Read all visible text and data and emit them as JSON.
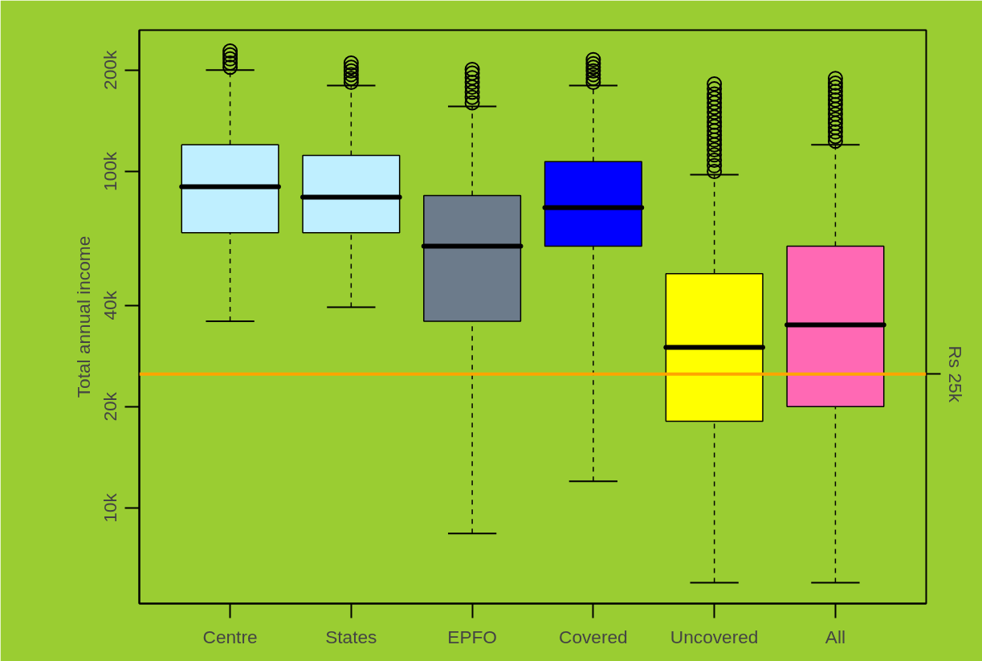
{
  "chart_data": {
    "type": "box",
    "ylabel": "Total annual income",
    "categories": [
      "Centre",
      "States",
      "EPFO",
      "Covered",
      "Uncovered",
      "All"
    ],
    "colors": [
      "#bfefff",
      "#bfefff",
      "#6c7b8b",
      "#0000ff",
      "#ffff00",
      "#ff69b4"
    ],
    "boxes": [
      {
        "low": 35900,
        "q1": 65800,
        "median": 90100,
        "q3": 120000,
        "high": 200000,
        "outliers": [
          204000,
          210000,
          216000,
          222000,
          228000
        ]
      },
      {
        "low": 39500,
        "q1": 65800,
        "median": 83900,
        "q3": 111600,
        "high": 180000,
        "outliers": [
          184000,
          189000,
          194000,
          199000,
          204000,
          210000
        ]
      },
      {
        "low": 8400,
        "q1": 35900,
        "median": 60000,
        "q3": 84800,
        "high": 156000,
        "outliers": [
          160000,
          166000,
          172000,
          178000,
          184000,
          190000,
          196000,
          201000
        ]
      },
      {
        "low": 12000,
        "q1": 60000,
        "median": 78100,
        "q3": 107000,
        "high": 180000,
        "outliers": [
          184000,
          189000,
          194000,
          199000,
          204000,
          209000,
          215000
        ]
      },
      {
        "low": 6000,
        "q1": 18100,
        "median": 30000,
        "q3": 49700,
        "high": 97800,
        "outliers": [
          100000,
          104000,
          108000,
          112000,
          116000,
          120000,
          124000,
          128000,
          132000,
          136000,
          140000,
          145000,
          150000,
          155000,
          160000,
          165000,
          170000,
          176000,
          182000
        ]
      },
      {
        "low": 6000,
        "q1": 20000,
        "median": 35000,
        "q3": 60000,
        "high": 120000,
        "outliers": [
          123000,
          127000,
          131000,
          135000,
          139000,
          143000,
          148000,
          153000,
          158000,
          163000,
          168000,
          173000,
          178000,
          183000,
          189000
        ]
      }
    ],
    "log": true,
    "ylim": [
      5200,
      263000
    ],
    "yticks": [
      {
        "value": 10000,
        "label": "10k"
      },
      {
        "value": 20000,
        "label": "20k"
      },
      {
        "value": 40000,
        "label": "40k"
      },
      {
        "value": 100000,
        "label": "100k"
      },
      {
        "value": 200000,
        "label": "200k"
      }
    ],
    "ref_lines": [
      {
        "axis": "y",
        "value": 25000,
        "label": "Rs 25k",
        "color": "#ffa500"
      }
    ],
    "grid": false
  }
}
